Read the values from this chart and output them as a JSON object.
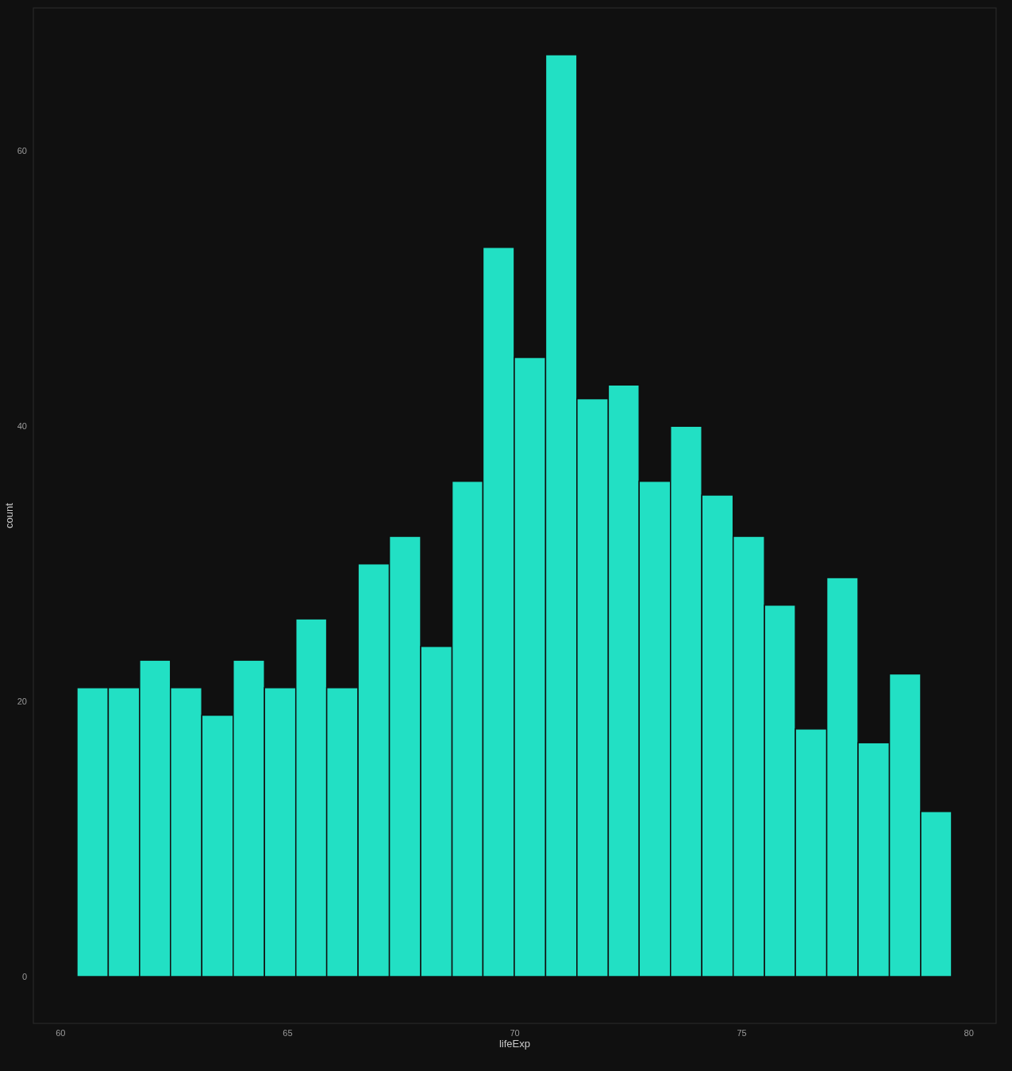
{
  "chart_data": {
    "type": "histogram",
    "xlabel": "lifeExp",
    "ylabel": "count",
    "bins": [
      60.36,
      61.05,
      61.74,
      62.42,
      63.11,
      63.8,
      64.49,
      65.18,
      65.86,
      66.55,
      67.24,
      67.93,
      68.62,
      69.3,
      69.99,
      70.68,
      71.37,
      72.06,
      72.74,
      73.43,
      74.12,
      74.81,
      75.5,
      76.18,
      76.87,
      77.56,
      78.25,
      78.94,
      79.62
    ],
    "values": [
      21,
      21,
      23,
      21,
      19,
      23,
      21,
      26,
      21,
      30,
      32,
      24,
      36,
      53,
      45,
      67,
      42,
      43,
      36,
      40,
      35,
      32,
      27,
      18,
      29,
      17,
      22,
      12
    ],
    "color": "#22e0c4",
    "xlim": [
      59.4,
      80.6
    ],
    "xticks": [
      60,
      65,
      70,
      75,
      80
    ],
    "ylim": [
      -3.4,
      70.4
    ],
    "yticks": [
      0,
      20,
      40,
      60
    ],
    "grid": false
  }
}
